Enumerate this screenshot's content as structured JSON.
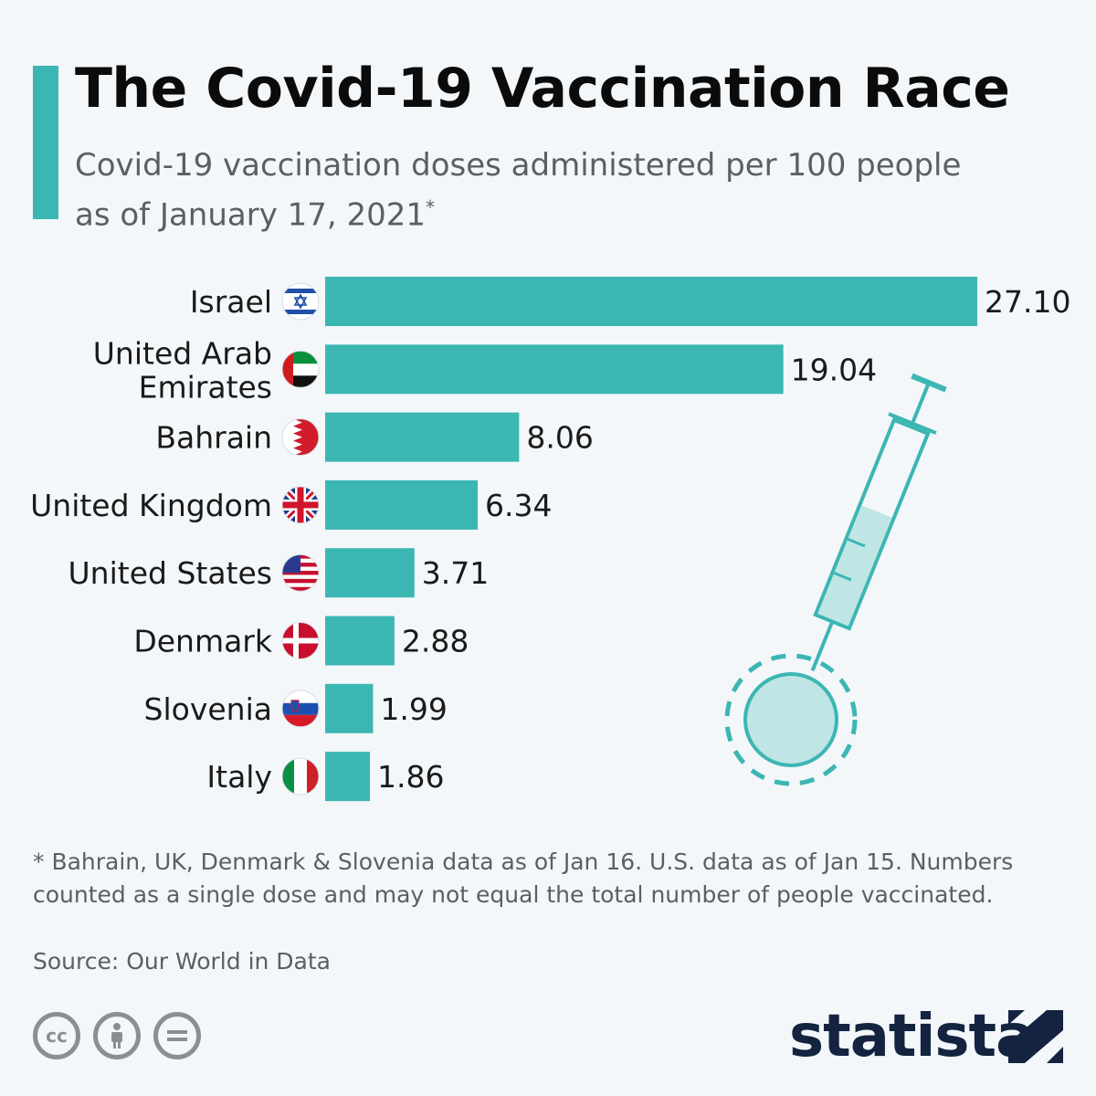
{
  "header": {
    "title": "The Covid-19 Vaccination Race",
    "subtitle_line1": "Covid-19 vaccination doses administered per 100 people",
    "subtitle_line2": "as of January 17, 2021",
    "subtitle_marker": "*"
  },
  "chart_data": {
    "type": "bar",
    "orientation": "horizontal",
    "categories": [
      "Israel",
      "United Arab Emirates",
      "Bahrain",
      "United Kingdom",
      "United States",
      "Denmark",
      "Slovenia",
      "Italy"
    ],
    "values": [
      27.1,
      19.04,
      8.06,
      6.34,
      3.71,
      2.88,
      1.99,
      1.86
    ],
    "value_labels": [
      "27.10",
      "19.04",
      "8.06",
      "6.34",
      "3.71",
      "2.88",
      "1.99",
      "1.86"
    ],
    "flag_icons": [
      "israel-flag-icon",
      "uae-flag-icon",
      "bahrain-flag-icon",
      "uk-flag-icon",
      "us-flag-icon",
      "denmark-flag-icon",
      "slovenia-flag-icon",
      "italy-flag-icon"
    ],
    "xlim": [
      0,
      27.1
    ],
    "grid": false,
    "bar_color": "#3cb6b3"
  },
  "footer": {
    "footnote": "* Bahrain, UK, Denmark & Slovenia data as of Jan 16. U.S. data as of Jan 15. Numbers counted as a single dose and may not equal the total number of people vaccinated.",
    "source": "Source: Our World in Data",
    "license_icons": [
      "cc-icon",
      "attribution-icon",
      "no-derivatives-icon"
    ],
    "license_cc_text": "cc",
    "brand": "statista"
  },
  "colors": {
    "accent": "#3cb6b3",
    "background": "#f3f7fa",
    "brand": "#14233f",
    "muted_text": "#5b5f63"
  }
}
